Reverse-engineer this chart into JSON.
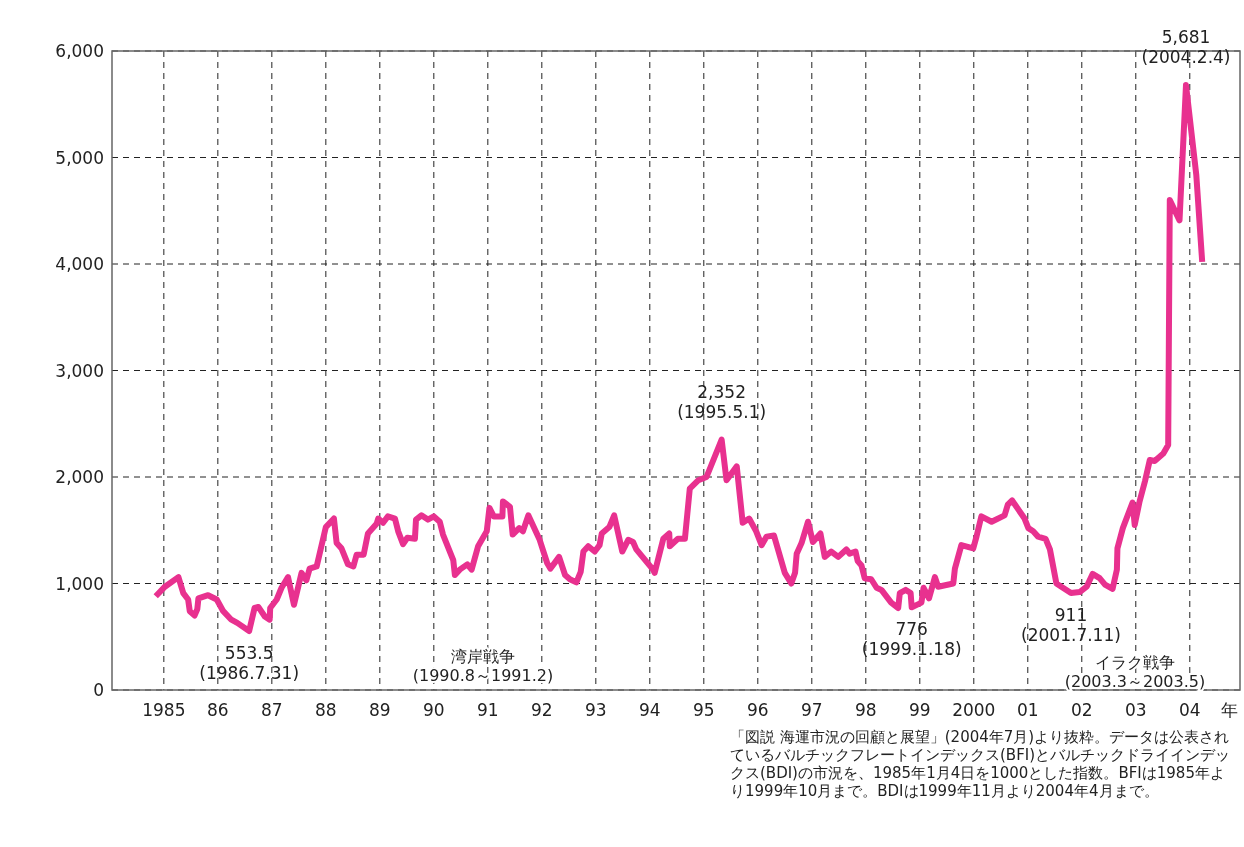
{
  "chart_data": {
    "type": "line",
    "xlabel": "年",
    "x": [
      1984.85,
      1985.02,
      1985.27,
      1985.36,
      1985.45,
      1985.48,
      1985.57,
      1985.62,
      1985.64,
      1985.82,
      1985.98,
      1986.1,
      1986.25,
      1986.36,
      1986.58,
      1986.68,
      1986.75,
      1986.87,
      1986.96,
      1986.97,
      1987.09,
      1987.18,
      1987.3,
      1987.41,
      1987.55,
      1987.64,
      1987.7,
      1987.83,
      1988.0,
      1988.15,
      1988.2,
      1988.29,
      1988.41,
      1988.51,
      1988.57,
      1988.7,
      1988.78,
      1988.94,
      1988.97,
      1989.06,
      1989.15,
      1989.28,
      1989.34,
      1989.43,
      1989.51,
      1989.65,
      1989.67,
      1989.77,
      1989.89,
      1990.0,
      1990.11,
      1990.17,
      1990.36,
      1990.39,
      1990.48,
      1990.62,
      1990.7,
      1990.82,
      1990.98,
      1991.03,
      1991.11,
      1991.27,
      1991.28,
      1991.41,
      1991.46,
      1991.58,
      1991.65,
      1991.75,
      1991.96,
      1992.1,
      1992.16,
      1992.32,
      1992.43,
      1992.52,
      1992.64,
      1992.72,
      1992.77,
      1992.86,
      1992.98,
      1993.07,
      1993.11,
      1993.25,
      1993.34,
      1993.49,
      1993.6,
      1993.69,
      1993.75,
      1994.06,
      1994.09,
      1994.25,
      1994.36,
      1994.37,
      1994.52,
      1994.65,
      1994.74,
      1994.9,
      1995.05,
      1995.33,
      1995.42,
      1995.61,
      1995.72,
      1995.84,
      1995.97,
      1996.07,
      1996.16,
      1996.3,
      1996.5,
      1996.62,
      1996.69,
      1996.72,
      1996.81,
      1996.93,
      1997.02,
      1997.16,
      1997.24,
      1997.36,
      1997.49,
      1997.64,
      1997.7,
      1997.81,
      1997.85,
      1997.92,
      1997.98,
      1998.1,
      1998.2,
      1998.29,
      1998.47,
      1998.6,
      1998.63,
      1998.74,
      1998.83,
      1998.85,
      1999.03,
      1999.07,
      1999.17,
      1999.28,
      1999.34,
      1999.62,
      1999.65,
      1999.77,
      1999.99,
      2000.05,
      2000.14,
      2000.33,
      2000.57,
      2000.63,
      2000.71,
      2000.94,
      2001.01,
      2001.1,
      2001.19,
      2001.33,
      2001.41,
      2001.53,
      2001.65,
      2001.8,
      2001.96,
      2002.09,
      2002.2,
      2002.33,
      2002.43,
      2002.57,
      2002.65,
      2002.66,
      2002.76,
      2002.94,
      2002.98,
      2003.07,
      2003.17,
      2003.26,
      2003.35,
      2003.51,
      2003.6,
      2003.63,
      2003.81,
      2003.93,
      2004.12,
      2004.23
    ],
    "series": [
      {
        "color": "#e8318f",
        "values": [
          880,
          970,
          1060,
          910,
          850,
          740,
          700,
          760,
          860,
          890,
          850,
          740,
          660,
          630,
          553.5,
          770,
          780,
          690,
          660,
          770,
          850,
          960,
          1060,
          800,
          1100,
          1030,
          1140,
          1160,
          1530,
          1610,
          1380,
          1330,
          1180,
          1160,
          1270,
          1270,
          1470,
          1560,
          1610,
          1570,
          1630,
          1610,
          1490,
          1370,
          1430,
          1420,
          1600,
          1640,
          1600,
          1630,
          1580,
          1460,
          1220,
          1080,
          1130,
          1180,
          1130,
          1350,
          1490,
          1710,
          1630,
          1630,
          1770,
          1720,
          1460,
          1520,
          1490,
          1640,
          1410,
          1190,
          1140,
          1250,
          1080,
          1040,
          1010,
          1110,
          1300,
          1350,
          1300,
          1360,
          1470,
          1530,
          1640,
          1300,
          1410,
          1390,
          1320,
          1130,
          1100,
          1420,
          1470,
          1350,
          1420,
          1420,
          1890,
          1970,
          2000,
          2352,
          1970,
          2100,
          1570,
          1610,
          1490,
          1360,
          1440,
          1450,
          1100,
          1000,
          1100,
          1280,
          1380,
          1580,
          1390,
          1470,
          1250,
          1300,
          1250,
          1320,
          1280,
          1300,
          1210,
          1170,
          1050,
          1040,
          960,
          940,
          820,
          770,
          910,
          940,
          910,
          776,
          820,
          960,
          860,
          1060,
          970,
          1000,
          1140,
          1360,
          1330,
          1440,
          1630,
          1580,
          1640,
          1740,
          1780,
          1610,
          1520,
          1490,
          1440,
          1420,
          1320,
          1000,
          960,
          911,
          920,
          970,
          1090,
          1050,
          990,
          950,
          1130,
          1330,
          1520,
          1760,
          1550,
          1770,
          1960,
          2160,
          2150,
          2220,
          2300,
          4600,
          4410,
          5681,
          4840,
          4020
        ]
      }
    ],
    "xlim": [
      1984.04,
      2004.93
    ],
    "xticks": [
      {
        "value": 1985,
        "label": "1985"
      },
      {
        "value": 1986,
        "label": "86"
      },
      {
        "value": 1987,
        "label": "87"
      },
      {
        "value": 1988,
        "label": "88"
      },
      {
        "value": 1989,
        "label": "89"
      },
      {
        "value": 1990,
        "label": "90"
      },
      {
        "value": 1991,
        "label": "91"
      },
      {
        "value": 1992,
        "label": "92"
      },
      {
        "value": 1993,
        "label": "93"
      },
      {
        "value": 1994,
        "label": "94"
      },
      {
        "value": 1995,
        "label": "95"
      },
      {
        "value": 1996,
        "label": "96"
      },
      {
        "value": 1997,
        "label": "97"
      },
      {
        "value": 1998,
        "label": "98"
      },
      {
        "value": 1999,
        "label": "99"
      },
      {
        "value": 2000,
        "label": "2000"
      },
      {
        "value": 2001,
        "label": "01"
      },
      {
        "value": 2002,
        "label": "02"
      },
      {
        "value": 2003,
        "label": "03"
      },
      {
        "value": 2004,
        "label": "04"
      }
    ],
    "ylim": [
      0,
      6000
    ],
    "yticks": [
      0,
      {
        "value": 1000,
        "label": "1,000"
      },
      {
        "value": 2000,
        "label": "2,000"
      },
      {
        "value": 3000,
        "label": "3,000"
      },
      {
        "value": 4000,
        "label": "4,000"
      },
      {
        "value": 5000,
        "label": "5,000"
      },
      {
        "value": 6000,
        "label": "6,000"
      }
    ],
    "grid": true,
    "line_style": "solid",
    "marker": "none",
    "annotations": [
      {
        "text": "553.5\n(1986.7.31)",
        "x": 1986.58,
        "y": 553.5
      },
      {
        "text": "2,352\n(1995.5.1)",
        "x": 1995.33,
        "y": 2352
      },
      {
        "text": "776\n(1999.1.18)",
        "x": 1998.85,
        "y": 776
      },
      {
        "text": "911\n(2001.7.11)",
        "x": 2001.8,
        "y": 911
      },
      {
        "text": "5,681\n(2004.2.4)",
        "x": 2003.93,
        "y": 5681
      },
      "湾岸戦争\n(1990.8～1991.2)",
      "イラク戦争\n(2003.3～2003.5)",
      "「図説 海運市況の回顧と展望」(2004年7月)より抜粋。データは公表されているバルチックフレートインデックス(BFI)とバルチックドライインデックス(BDI)の市況を、1985年1月4日を1000とした指数。BFIは1985年より1999年10月まで。BDIは1999年11月より2004年4月まで。"
    ]
  }
}
